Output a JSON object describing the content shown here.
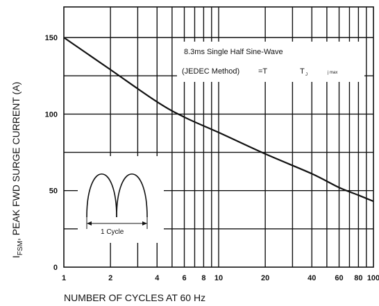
{
  "chart_data": {
    "type": "line",
    "xscale": "log",
    "xlim": [
      1,
      100
    ],
    "ylim": [
      0,
      170
    ],
    "grid": true,
    "x_ticks": [
      1,
      2,
      4,
      6,
      8,
      10,
      20,
      40,
      60,
      80,
      100
    ],
    "x_tick_labels": [
      "1",
      "2",
      "4",
      "6",
      "8",
      "10",
      "20",
      "40",
      "60",
      "80",
      "100"
    ],
    "y_ticks": [
      0,
      50,
      100,
      150
    ],
    "y_tick_labels": [
      "0",
      "50",
      "100",
      "150"
    ],
    "xlabel": "NUMBER OF CYCLES AT 60 Hz",
    "ylabel": {
      "prefix": "I",
      "subscript": "FSM",
      "rest": ",  PEAK FWD SURGE CURRENT (A)"
    },
    "series": [
      {
        "x": [
          1,
          2,
          4,
          6,
          10,
          20,
          40,
          60,
          80,
          100
        ],
        "y": [
          150,
          129,
          108,
          98,
          88,
          74,
          61,
          52,
          47,
          43
        ]
      }
    ],
    "annotation": {
      "line1": "8.3ms Single Half Sine-Wave",
      "line2_method": "(JEDEC Method)",
      "line2_eq": "=T",
      "line2_tj": "T",
      "line2_tj_sub": "J",
      "line2_tail": "j max"
    },
    "inset": {
      "label": "1 Cycle"
    }
  }
}
